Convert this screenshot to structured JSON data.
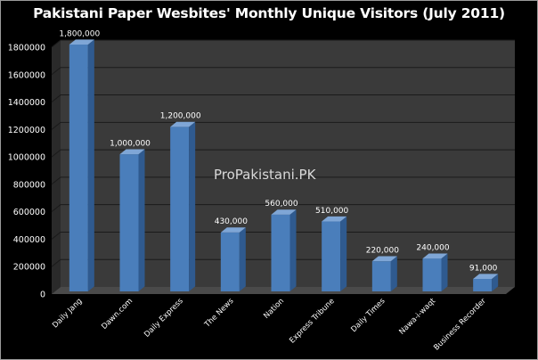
{
  "chart_data": {
    "type": "bar",
    "title": "Pakistani Paper Wesbites' Monthly Unique Visitors (July 2011)",
    "categories": [
      "Daily Jang",
      "Dawn.com",
      "Daily Express",
      "The News",
      "Nation",
      "Express Tribune",
      "Daily Times",
      "Nawa-i-waqt",
      "Business Recorder"
    ],
    "values": [
      1800000,
      1000000,
      1200000,
      430000,
      560000,
      510000,
      220000,
      240000,
      91000
    ],
    "data_labels": [
      "1,800,000",
      "1,000,000",
      "1,200,000",
      "430,000",
      "560,000",
      "510,000",
      "220,000",
      "240,000",
      "91,000"
    ],
    "y_ticks": [
      0,
      200000,
      400000,
      600000,
      800000,
      1000000,
      1200000,
      1400000,
      1600000,
      1800000
    ],
    "y_tick_labels": [
      "0",
      "200000",
      "400000",
      "600000",
      "800000",
      "1000000",
      "1200000",
      "1400000",
      "1600000",
      "1800000"
    ],
    "ylim": [
      0,
      1800000
    ],
    "xlabel": "",
    "ylabel": "",
    "grid": true,
    "legend": "none",
    "bar_color": "#4a7ebb",
    "background_color": "#000000",
    "wall_color": "#3a3a3a"
  },
  "watermark": "ProPakistani.PK"
}
